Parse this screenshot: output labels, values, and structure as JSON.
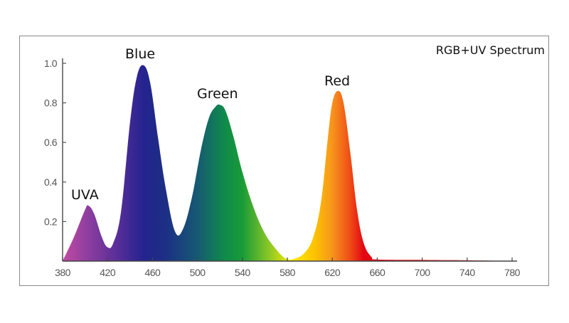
{
  "chart_data": {
    "type": "area",
    "title": "RGB+UV Spectrum",
    "xlabel": "",
    "ylabel": "",
    "xlim": [
      380,
      780
    ],
    "ylim": [
      0,
      1.0
    ],
    "grid": false,
    "x_ticks": [
      380,
      420,
      460,
      500,
      540,
      580,
      620,
      660,
      700,
      740,
      780
    ],
    "y_ticks": [
      "0.2",
      "0.4",
      "0.6",
      "0.8",
      "1.0"
    ],
    "peaks": [
      {
        "name": "UVA",
        "wavelength": 403,
        "value": 0.28
      },
      {
        "name": "Blue",
        "wavelength": 452,
        "value": 0.99
      },
      {
        "name": "Green",
        "wavelength": 520,
        "value": 0.79
      },
      {
        "name": "Red",
        "wavelength": 625,
        "value": 0.86
      }
    ],
    "series": [
      {
        "name": "Spectrum",
        "x": [
          380,
          390,
          400,
          403,
          408,
          415,
          420,
          425,
          432,
          440,
          446,
          452,
          458,
          465,
          472,
          480,
          487,
          495,
          503,
          510,
          516,
          520,
          525,
          532,
          540,
          550,
          560,
          570,
          578,
          585,
          595,
          603,
          610,
          616,
          620,
          625,
          630,
          636,
          642,
          648,
          655,
          660,
          700,
          740,
          780
        ],
        "values": [
          0.0,
          0.12,
          0.26,
          0.28,
          0.24,
          0.12,
          0.07,
          0.09,
          0.25,
          0.7,
          0.93,
          0.99,
          0.9,
          0.62,
          0.36,
          0.15,
          0.16,
          0.32,
          0.56,
          0.72,
          0.78,
          0.79,
          0.76,
          0.63,
          0.45,
          0.27,
          0.14,
          0.06,
          0.015,
          0.01,
          0.04,
          0.12,
          0.3,
          0.62,
          0.8,
          0.86,
          0.8,
          0.55,
          0.26,
          0.09,
          0.02,
          0.008,
          0.006,
          0.004,
          0.0
        ]
      }
    ],
    "legend": "none",
    "annotations": [
      {
        "text": "UVA",
        "at_wavelength": 403
      },
      {
        "text": "Blue",
        "at_wavelength": 452
      },
      {
        "text": "Green",
        "at_wavelength": 520
      },
      {
        "text": "Red",
        "at_wavelength": 625
      },
      {
        "text": "RGB+UV Spectrum",
        "position": "top-right"
      }
    ]
  },
  "colors": {
    "uva": "#9b3fa8",
    "violet": "#5b2d9a",
    "blue": "#1d2b8c",
    "teal": "#12676a",
    "green": "#0e9a3c",
    "yellow_green": "#9acb1c",
    "yellow": "#ffe800",
    "orange": "#f7941d",
    "red": "#e30613",
    "axis": "#555555",
    "frame": "#8a8a8a"
  }
}
